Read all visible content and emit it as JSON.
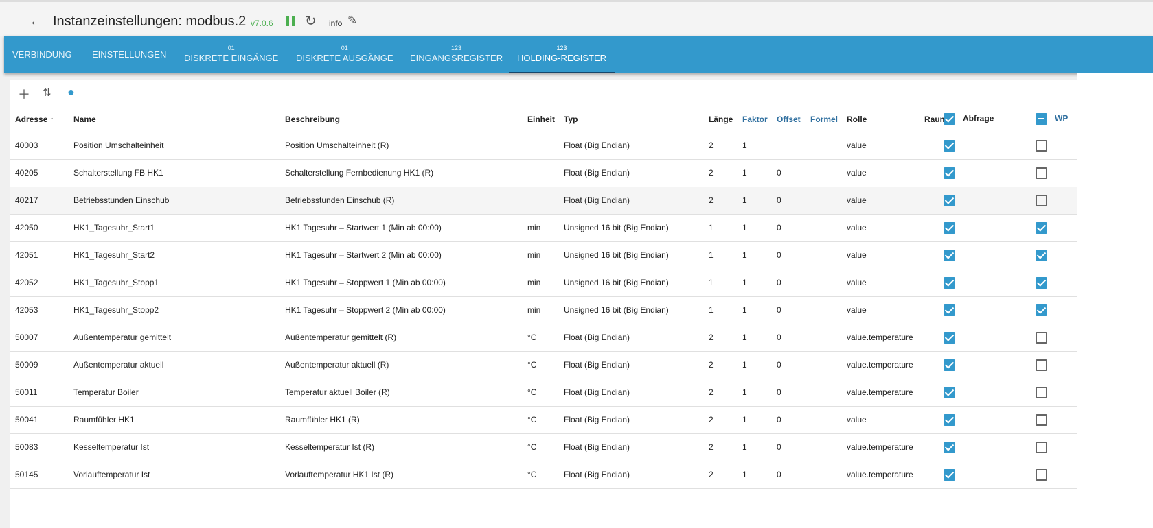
{
  "header": {
    "title": "Instanzeinstellungen: modbus.2",
    "version": "v7.0.6",
    "log_level": "info"
  },
  "tabs": [
    {
      "num": "",
      "label": "VERBINDUNG"
    },
    {
      "num": "",
      "label": "EINSTELLUNGEN"
    },
    {
      "num": "01",
      "label": "DISKRETE EINGÄNGE"
    },
    {
      "num": "01",
      "label": "DISKRETE AUSGÄNGE"
    },
    {
      "num": "123",
      "label": "EINGANGSREGISTER"
    },
    {
      "num": "123",
      "label": "HOLDING-REGISTER",
      "active": true
    }
  ],
  "table": {
    "columns": [
      "Adresse",
      "Name",
      "Beschreibung",
      "Einheit",
      "Typ",
      "Länge",
      "Faktor",
      "Offset",
      "Formel",
      "Rolle",
      "Raum",
      "Abfrage",
      "WP"
    ],
    "header_checks": {
      "abfrage": "checked",
      "wp": "indeterminate"
    },
    "rows": [
      [
        "40003",
        "Position Umschalteinheit",
        "Position Umschalteinheit (R)",
        "",
        "Float (Big Endian)",
        "2",
        "1",
        "",
        "",
        "value",
        "",
        true,
        false
      ],
      [
        "40205",
        "Schalterstellung FB HK1",
        "Schalterstellung Fernbedienung HK1 (R)",
        "",
        "Float (Big Endian)",
        "2",
        "1",
        "0",
        "",
        "value",
        "",
        true,
        false
      ],
      [
        "40217",
        "Betriebsstunden Einschub",
        "Betriebsstunden Einschub (R)",
        "",
        "Float (Big Endian)",
        "2",
        "1",
        "0",
        "",
        "value",
        "",
        true,
        false
      ],
      [
        "42050",
        "HK1_Tagesuhr_Start1",
        "HK1 Tagesuhr – Startwert 1 (Min ab 00:00)",
        "min",
        "Unsigned 16 bit (Big Endian)",
        "1",
        "1",
        "0",
        "",
        "value",
        "",
        true,
        true
      ],
      [
        "42051",
        "HK1_Tagesuhr_Start2",
        "HK1 Tagesuhr – Startwert 2 (Min ab 00:00)",
        "min",
        "Unsigned 16 bit (Big Endian)",
        "1",
        "1",
        "0",
        "",
        "value",
        "",
        true,
        true
      ],
      [
        "42052",
        "HK1_Tagesuhr_Stopp1",
        "HK1 Tagesuhr – Stoppwert 1 (Min ab 00:00)",
        "min",
        "Unsigned 16 bit (Big Endian)",
        "1",
        "1",
        "0",
        "",
        "value",
        "",
        true,
        true
      ],
      [
        "42053",
        "HK1_Tagesuhr_Stopp2",
        "HK1 Tagesuhr – Stoppwert 2 (Min ab 00:00)",
        "min",
        "Unsigned 16 bit (Big Endian)",
        "1",
        "1",
        "0",
        "",
        "value",
        "",
        true,
        true
      ],
      [
        "50007",
        "Außentemperatur gemittelt",
        "Außentemperatur gemittelt (R)",
        "°C",
        "Float (Big Endian)",
        "2",
        "1",
        "0",
        "",
        "value.temperature",
        "",
        true,
        false
      ],
      [
        "50009",
        "Außentemperatur aktuell",
        "Außentemperatur aktuell (R)",
        "°C",
        "Float (Big Endian)",
        "2",
        "1",
        "0",
        "",
        "value.temperature",
        "",
        true,
        false
      ],
      [
        "50011",
        "Temperatur Boiler",
        "Temperatur aktuell Boiler (R)",
        "°C",
        "Float (Big Endian)",
        "2",
        "1",
        "0",
        "",
        "value.temperature",
        "",
        true,
        false
      ],
      [
        "50041",
        "Raumfühler HK1",
        "Raumfühler HK1 (R)",
        "°C",
        "Float (Big Endian)",
        "2",
        "1",
        "0",
        "",
        "value",
        "",
        true,
        false
      ],
      [
        "50083",
        "Kesseltemperatur Ist",
        "Kesseltemperatur Ist (R)",
        "°C",
        "Float (Big Endian)",
        "2",
        "1",
        "0",
        "",
        "value.temperature",
        "",
        true,
        false
      ],
      [
        "50145",
        "Vorlauftemperatur Ist",
        "Vorlauftemperatur HK1 Ist (R)",
        "°C",
        "Float (Big Endian)",
        "2",
        "1",
        "0",
        "",
        "value.temperature",
        "",
        true,
        false
      ]
    ]
  },
  "colors": {
    "accent": "#3399cc",
    "version": "#4caf50"
  }
}
